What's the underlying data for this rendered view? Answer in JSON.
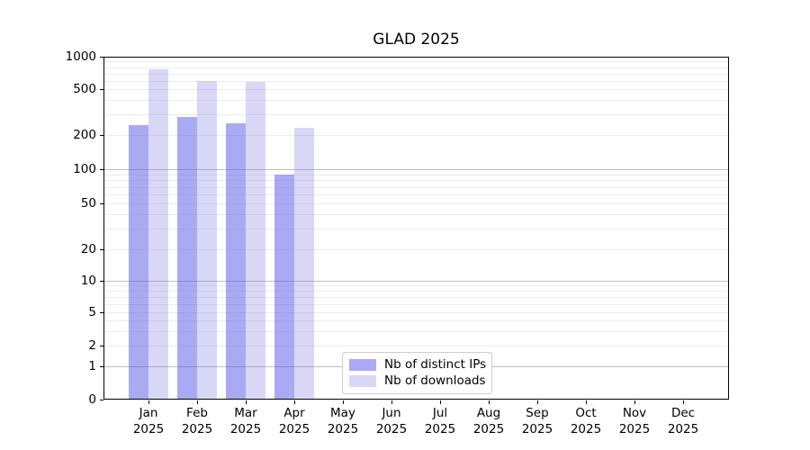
{
  "chart_data": {
    "type": "bar",
    "title": "GLAD 2025",
    "y_scale": "symlog",
    "y_ticks": [
      0,
      1,
      2,
      5,
      10,
      20,
      50,
      100,
      200,
      500,
      1000
    ],
    "y_lim": [
      0,
      1000
    ],
    "grid": "both-horizontal",
    "legend_position": "lower center",
    "year": "2025",
    "categories": [
      "Jan",
      "Feb",
      "Mar",
      "Apr",
      "May",
      "Jun",
      "Jul",
      "Aug",
      "Sep",
      "Oct",
      "Nov",
      "Dec"
    ],
    "series": [
      {
        "name": "Nb of distinct IPs",
        "color_hex": "#aaaaf4",
        "fill": "rgba(85,85,233,0.5)",
        "values": [
          245,
          285,
          255,
          90,
          null,
          null,
          null,
          null,
          null,
          null,
          null,
          null
        ]
      },
      {
        "name": "Nb of downloads",
        "color_hex": "#d8d8f6",
        "fill": "rgba(125,125,225,0.3)",
        "values": [
          760,
          600,
          580,
          230,
          null,
          null,
          null,
          null,
          null,
          null,
          null,
          null
        ]
      }
    ]
  }
}
